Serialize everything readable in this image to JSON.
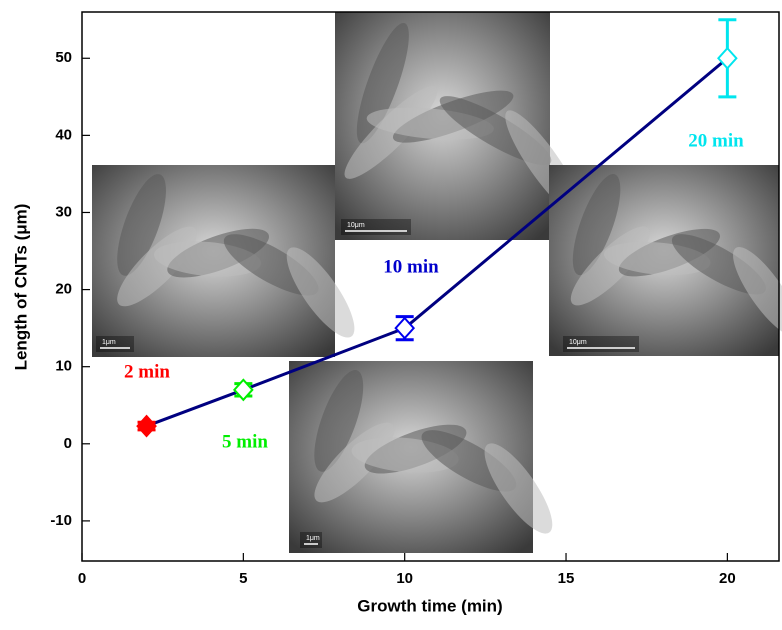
{
  "chart_data": {
    "type": "scatter",
    "x_label": "Growth time (min)",
    "y_label": "Length of CNTs (μm)",
    "x": [
      2,
      5,
      10,
      20
    ],
    "values": [
      2.3,
      7,
      15,
      50
    ],
    "errors": [
      0.5,
      0.8,
      1.5,
      5
    ],
    "colors": [
      "#ff0000",
      "#00ee00",
      "#0000ee",
      "#00e5ee"
    ],
    "line_color": "#000080",
    "annotations": [
      {
        "text": "2 min",
        "color": "#ff0000"
      },
      {
        "text": "5 min",
        "color": "#00ee00"
      },
      {
        "text": "10 min",
        "color": "#0000cc"
      },
      {
        "text": "20 min",
        "color": "#00e5ee"
      }
    ],
    "insets": [
      {
        "scale_label": "1μm"
      },
      {
        "scale_label": "10μm"
      },
      {
        "scale_label": "10μm"
      },
      {
        "scale_label": "1μm"
      }
    ],
    "xlim": [
      0,
      21.6
    ],
    "ylim": [
      -15.2,
      56
    ],
    "xticks": [
      0,
      5,
      10,
      15,
      20
    ],
    "yticks": [
      -10,
      0,
      10,
      20,
      30,
      40,
      50
    ]
  }
}
